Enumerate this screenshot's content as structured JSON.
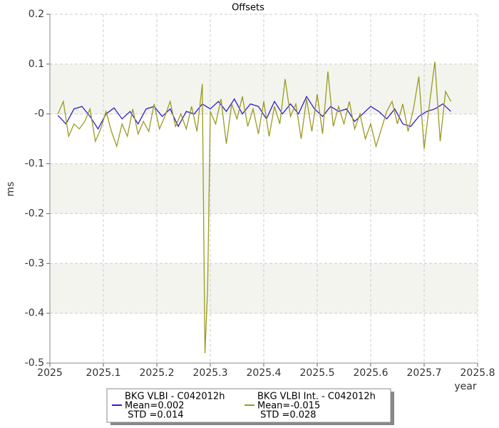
{
  "chart_data": {
    "type": "line",
    "title": "Offsets",
    "xlabel": "year",
    "ylabel": "ms",
    "xlim": [
      2025,
      2025.8
    ],
    "xticks": [
      2025,
      2025.1,
      2025.2,
      2025.3,
      2025.4,
      2025.5,
      2025.6,
      2025.7,
      2025.8
    ],
    "ylim": [
      -0.5,
      0.2
    ],
    "yticks": [
      0.2,
      0.1,
      {
        "value": 0,
        "label": "-0"
      },
      -0.1,
      -0.2,
      -0.3,
      -0.4,
      -0.5
    ],
    "grid": true,
    "series": [
      {
        "name": "BKG VLBI - C042012h",
        "mean_label": "Mean=0.002",
        "std_label": " STD =0.014",
        "color": "#2a1fd0",
        "x": [
          2025.015,
          2025.03,
          2025.045,
          2025.06,
          2025.075,
          2025.09,
          2025.105,
          2025.12,
          2025.135,
          2025.15,
          2025.165,
          2025.18,
          2025.195,
          2025.21,
          2025.225,
          2025.24,
          2025.255,
          2025.27,
          2025.285,
          2025.3,
          2025.315,
          2025.33,
          2025.345,
          2025.36,
          2025.375,
          2025.39,
          2025.405,
          2025.42,
          2025.435,
          2025.45,
          2025.465,
          2025.48,
          2025.495,
          2025.51,
          2025.525,
          2025.54,
          2025.555,
          2025.57,
          2025.585,
          2025.6,
          2025.615,
          2025.63,
          2025.645,
          2025.66,
          2025.675,
          2025.69,
          2025.705,
          2025.72,
          2025.735,
          2025.75
        ],
        "values": [
          -0.003,
          -0.02,
          0.01,
          0.015,
          -0.005,
          -0.03,
          0.0,
          0.012,
          -0.01,
          0.005,
          -0.02,
          0.01,
          0.015,
          -0.005,
          0.01,
          -0.025,
          0.005,
          0.0,
          0.02,
          0.01,
          0.025,
          0.005,
          0.03,
          0.0,
          0.02,
          0.015,
          -0.01,
          0.025,
          0.0,
          0.02,
          0.0,
          0.035,
          0.01,
          -0.005,
          0.015,
          0.005,
          0.01,
          -0.015,
          0.0,
          0.015,
          0.005,
          -0.01,
          0.01,
          -0.02,
          -0.025,
          -0.005,
          0.005,
          0.01,
          0.02,
          0.005
        ]
      },
      {
        "name": "BKG VLBI Int. - C042012h",
        "mean_label": "Mean=-0.015",
        "std_label": " STD =0.028",
        "color": "#9a9a22",
        "x": [
          2025.015,
          2025.025,
          2025.035,
          2025.045,
          2025.055,
          2025.065,
          2025.075,
          2025.085,
          2025.095,
          2025.105,
          2025.115,
          2025.125,
          2025.135,
          2025.145,
          2025.155,
          2025.165,
          2025.175,
          2025.185,
          2025.195,
          2025.205,
          2025.215,
          2025.225,
          2025.235,
          2025.245,
          2025.255,
          2025.265,
          2025.275,
          2025.285,
          2025.29,
          2025.295,
          2025.3,
          2025.31,
          2025.32,
          2025.33,
          2025.34,
          2025.35,
          2025.36,
          2025.37,
          2025.38,
          2025.39,
          2025.4,
          2025.41,
          2025.42,
          2025.43,
          2025.44,
          2025.45,
          2025.46,
          2025.47,
          2025.48,
          2025.49,
          2025.5,
          2025.51,
          2025.52,
          2025.53,
          2025.54,
          2025.55,
          2025.56,
          2025.57,
          2025.58,
          2025.59,
          2025.6,
          2025.61,
          2025.62,
          2025.63,
          2025.64,
          2025.65,
          2025.66,
          2025.67,
          2025.68,
          2025.69,
          2025.7,
          2025.71,
          2025.72,
          2025.73,
          2025.74,
          2025.75
        ],
        "values": [
          0.0,
          0.025,
          -0.045,
          -0.02,
          -0.03,
          -0.015,
          0.01,
          -0.055,
          -0.03,
          0.005,
          -0.035,
          -0.065,
          -0.02,
          -0.045,
          0.01,
          -0.04,
          -0.015,
          -0.035,
          0.02,
          -0.03,
          -0.005,
          0.025,
          -0.025,
          0.0,
          -0.03,
          0.015,
          -0.035,
          0.06,
          -0.48,
          -0.35,
          0.005,
          -0.02,
          0.03,
          -0.06,
          0.02,
          -0.01,
          0.035,
          -0.025,
          0.01,
          -0.04,
          0.025,
          -0.045,
          0.015,
          -0.02,
          0.07,
          -0.005,
          0.02,
          -0.05,
          0.03,
          -0.035,
          0.04,
          -0.04,
          0.085,
          -0.025,
          0.015,
          -0.02,
          0.025,
          -0.03,
          0.0,
          -0.05,
          -0.02,
          -0.065,
          -0.03,
          0.005,
          0.025,
          -0.02,
          0.02,
          -0.035,
          0.01,
          0.075,
          -0.07,
          0.02,
          0.105,
          -0.055,
          0.045,
          0.025
        ]
      }
    ]
  }
}
